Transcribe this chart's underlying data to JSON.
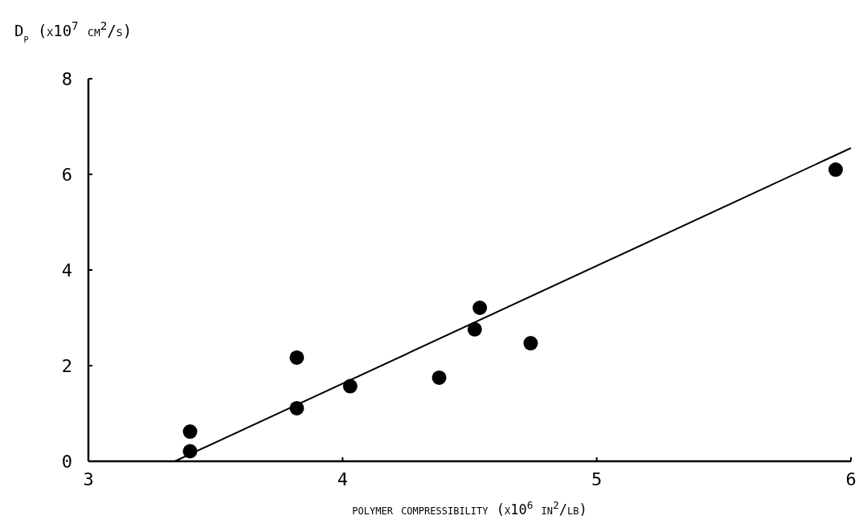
{
  "chart_data": {
    "type": "scatter",
    "xlabel": "polymer compressibility (x10$^{6}$ in$^{2}$/lb)",
    "ylabel": "D$_{p}$ (x10$^{7}$ cm$^{2}$/s)",
    "xlim": [
      3,
      6
    ],
    "ylim": [
      0,
      8
    ],
    "xticks": [
      3,
      4,
      5,
      6
    ],
    "yticks": [
      0,
      2,
      4,
      6,
      8
    ],
    "grid": false,
    "marker": "circle",
    "series": [
      {
        "color": "#000000",
        "x": [
          3.4,
          3.4,
          3.82,
          3.82,
          4.03,
          4.38,
          4.52,
          4.54,
          4.74,
          5.94
        ],
        "values": [
          0.62,
          0.21,
          2.17,
          1.11,
          1.57,
          1.75,
          2.76,
          3.21,
          2.47,
          6.1
        ]
      },
      {
        "type": "line",
        "color": "#000000",
        "x": [
          3.34,
          6
        ],
        "values": [
          0,
          6.55
        ],
        "marker": "none",
        "line_style": "solid"
      }
    ]
  }
}
